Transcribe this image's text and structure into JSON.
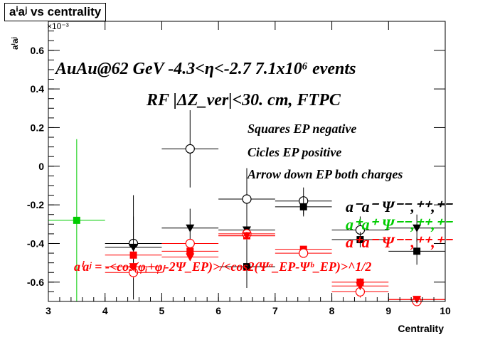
{
  "title": "aⁱaʲ vs centrality",
  "ylabel": "aⁱaʲ",
  "xlabel": "Centrality",
  "y_exponent": "×10⁻³",
  "annotations": {
    "line1": "AuAu@62 GeV -4.3<η<-2.7 7.1x10⁶ events",
    "line2": "RF |ΔZ_ver|<30. cm, FTPC",
    "squares": "Squares EP negative",
    "circles": "Cicles EP positive",
    "arrows": "Arrow down EP both charges",
    "formula": "aⁱaʲ = -<cos(φᵢ+φⱼ-2Ψ_EP)>/<cos2(Ψᵃ_EP-Ψᵇ_EP)>^1/2"
  },
  "legend": {
    "black": "a⁻a⁻  Ψ⁻⁻,⁺⁺,⁺⁻",
    "green": "a⁺a⁺  Ψ⁻⁻,⁺⁺,⁺⁻",
    "red": "a⁺a⁻  Ψ⁻⁻,⁺⁺,⁺⁻",
    "colors": {
      "black": "#000000",
      "green": "#00cc00",
      "red": "#ff0000"
    }
  },
  "chart_data": {
    "type": "scatter",
    "xlim": [
      3,
      10
    ],
    "ylim": [
      -0.7,
      0.75
    ],
    "xticks": [
      3,
      4,
      5,
      6,
      7,
      8,
      9,
      10
    ],
    "yticks": [
      -0.6,
      -0.4,
      -0.2,
      0,
      0.2,
      0.4,
      0.6
    ],
    "series": [
      {
        "color": "black",
        "marker": "open-circle",
        "points": [
          {
            "x": 4.5,
            "y": -0.4,
            "xerr": 0.5,
            "yerr": 0.14
          },
          {
            "x": 5.5,
            "y": 0.09,
            "xerr": 0.5,
            "yerr": 0.2
          },
          {
            "x": 6.5,
            "y": -0.17,
            "xerr": 0.5,
            "yerr": 0.16
          },
          {
            "x": 7.5,
            "y": -0.18,
            "xerr": 0.5,
            "yerr": 0.07
          },
          {
            "x": 8.5,
            "y": -0.33,
            "xerr": 0.5,
            "yerr": 0.07
          }
        ]
      },
      {
        "color": "black",
        "marker": "filled-square",
        "points": [
          {
            "x": 6.5,
            "y": -0.52,
            "xerr": 0.5,
            "yerr": 0.11
          },
          {
            "x": 7.5,
            "y": -0.21,
            "xerr": 0.5,
            "yerr": 0.05
          },
          {
            "x": 8.5,
            "y": -0.38,
            "xerr": 0.5,
            "yerr": 0.04
          },
          {
            "x": 9.5,
            "y": -0.44,
            "xerr": 0.5,
            "yerr": 0.07
          }
        ]
      },
      {
        "color": "black",
        "marker": "triangle-down",
        "points": [
          {
            "x": 4.5,
            "y": -0.42,
            "xerr": 0.5,
            "yerr": 0.27
          },
          {
            "x": 5.5,
            "y": -0.32,
            "xerr": 0.5,
            "yerr": 0.1
          },
          {
            "x": 6.5,
            "y": -0.33,
            "xerr": 0.5,
            "yerr": 0.1
          },
          {
            "x": 9.5,
            "y": -0.32,
            "xerr": 0.5,
            "yerr": 0.07
          }
        ]
      },
      {
        "color": "green",
        "marker": "filled-square",
        "points": [
          {
            "x": 3.5,
            "y": -0.28,
            "xerr": 0.5,
            "yerr": 0.42
          }
        ]
      },
      {
        "color": "red",
        "marker": "filled-square",
        "points": [
          {
            "x": 4.5,
            "y": -0.46,
            "xerr": 0.5,
            "yerr": 0.02
          },
          {
            "x": 5.5,
            "y": -0.44,
            "xerr": 0.5,
            "yerr": 0.02
          },
          {
            "x": 6.5,
            "y": -0.36,
            "xerr": 0.5,
            "yerr": 0.01
          },
          {
            "x": 7.5,
            "y": -0.43,
            "xerr": 0.5,
            "yerr": 0.01
          },
          {
            "x": 8.5,
            "y": -0.6,
            "xerr": 0.5,
            "yerr": 0.02
          },
          {
            "x": 9.5,
            "y": -0.69,
            "xerr": 0.5,
            "yerr": 0.01
          }
        ]
      },
      {
        "color": "red",
        "marker": "open-circle",
        "points": [
          {
            "x": 4.5,
            "y": -0.55,
            "xerr": 0.5,
            "yerr": 0.03
          },
          {
            "x": 5.5,
            "y": -0.4,
            "xerr": 0.5,
            "yerr": 0.02
          },
          {
            "x": 6.5,
            "y": -0.35,
            "xerr": 0.5,
            "yerr": 0.02
          },
          {
            "x": 7.5,
            "y": -0.45,
            "xerr": 0.5,
            "yerr": 0.02
          },
          {
            "x": 8.5,
            "y": -0.65,
            "xerr": 0.5,
            "yerr": 0.03
          },
          {
            "x": 9.5,
            "y": -0.7,
            "xerr": 0.5,
            "yerr": 0.02
          }
        ]
      },
      {
        "color": "red",
        "marker": "triangle-down",
        "points": [
          {
            "x": 4.5,
            "y": -0.52,
            "xerr": 0.5,
            "yerr": 0.02
          },
          {
            "x": 5.5,
            "y": -0.47,
            "xerr": 0.5,
            "yerr": 0.02
          },
          {
            "x": 6.5,
            "y": -0.36,
            "xerr": 0.5,
            "yerr": 0.02
          },
          {
            "x": 8.5,
            "y": -0.62,
            "xerr": 0.5,
            "yerr": 0.02
          },
          {
            "x": 9.5,
            "y": -0.69,
            "xerr": 0.5,
            "yerr": 0.01
          }
        ]
      }
    ]
  }
}
